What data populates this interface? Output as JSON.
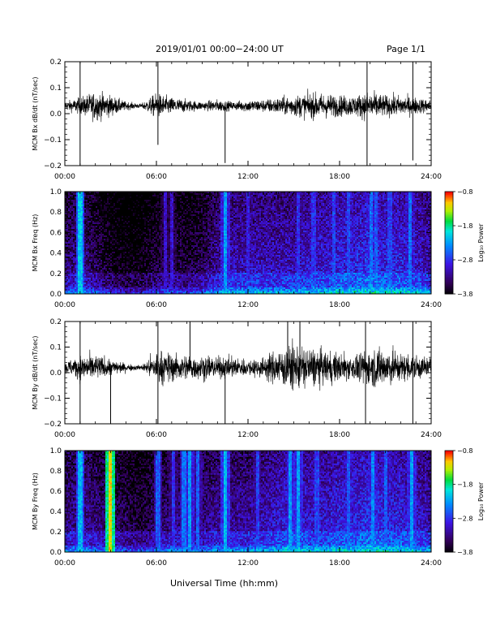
{
  "header": {
    "title": "2019/01/01  00:00−24:00 UT",
    "page": "Page 1/1"
  },
  "xlabel": "Universal Time (hh:mm)",
  "chart_data": [
    {
      "type": "line",
      "ylabel": "MCM Bx dB/dt (nT/sec)",
      "xticks": [
        "00:00",
        "06:00",
        "12:00",
        "18:00",
        "24:00"
      ],
      "yticks": [
        "0.2",
        "0.1",
        "0.0",
        "−0.1",
        "−0.2"
      ],
      "xlim_hours": [
        0,
        24
      ],
      "ylim": [
        -0.2,
        0.2
      ],
      "baseline": 0.03,
      "activity": [
        [
          0,
          0.02
        ],
        [
          1,
          0.04
        ],
        [
          2,
          0.07
        ],
        [
          3,
          0.05
        ],
        [
          4,
          0.02
        ],
        [
          5,
          0.01
        ],
        [
          6,
          0.06
        ],
        [
          7,
          0.04
        ],
        [
          8,
          0.03
        ],
        [
          9,
          0.02
        ],
        [
          10,
          0.03
        ],
        [
          11,
          0.02
        ],
        [
          12,
          0.03
        ],
        [
          13,
          0.03
        ],
        [
          14,
          0.04
        ],
        [
          15,
          0.05
        ],
        [
          16,
          0.06
        ],
        [
          17,
          0.06
        ],
        [
          18,
          0.05
        ],
        [
          19,
          0.05
        ],
        [
          20,
          0.07
        ],
        [
          21,
          0.05
        ],
        [
          22,
          0.05
        ],
        [
          23,
          0.04
        ],
        [
          24,
          0.03
        ]
      ],
      "spikes": [
        [
          1.0,
          0.2
        ],
        [
          1.0,
          -0.2
        ],
        [
          6.1,
          0.2
        ],
        [
          6.1,
          -0.12
        ],
        [
          10.5,
          -0.19
        ],
        [
          19.8,
          0.2
        ],
        [
          19.8,
          -0.2
        ],
        [
          22.8,
          0.2
        ],
        [
          22.8,
          -0.18
        ]
      ]
    },
    {
      "type": "heatmap",
      "ylabel": "MCM Bx Freq (Hz)",
      "xticks": [
        "00:00",
        "06:00",
        "12:00",
        "18:00",
        "24:00"
      ],
      "yticks": [
        "1.0",
        "0.8",
        "0.6",
        "0.4",
        "0.2",
        "0.0"
      ],
      "ylim": [
        0,
        1
      ],
      "colorbar": {
        "label": "Log₁₀ Power",
        "ticks": [
          "−0.8",
          "−1.8",
          "−2.8",
          "−3.8"
        ],
        "range": [
          -3.8,
          -0.8
        ]
      },
      "background_level": [
        [
          0,
          -3.3
        ],
        [
          1,
          -3.1
        ],
        [
          2,
          -3.4
        ],
        [
          3,
          -3.6
        ],
        [
          4,
          -3.7
        ],
        [
          5,
          -3.7
        ],
        [
          6,
          -3.5
        ],
        [
          7,
          -3.4
        ],
        [
          8,
          -3.5
        ],
        [
          9,
          -3.4
        ],
        [
          10,
          -3.1
        ],
        [
          11,
          -3.0
        ],
        [
          12,
          -3.0
        ],
        [
          13,
          -3.0
        ],
        [
          14,
          -3.0
        ],
        [
          15,
          -3.0
        ],
        [
          16,
          -2.9
        ],
        [
          17,
          -2.9
        ],
        [
          18,
          -2.8
        ],
        [
          19,
          -2.8
        ],
        [
          20,
          -2.7
        ],
        [
          21,
          -2.8
        ],
        [
          22,
          -2.8
        ],
        [
          23,
          -2.9
        ],
        [
          24,
          -3.0
        ]
      ],
      "vertical_lines_hours": [
        [
          1.0,
          -2.1
        ],
        [
          6.6,
          -3.0
        ],
        [
          7.0,
          -3.0
        ],
        [
          10.5,
          -2.3
        ],
        [
          12.0,
          -2.9
        ],
        [
          15.3,
          -2.8
        ],
        [
          16.3,
          -2.8
        ],
        [
          17.6,
          -2.7
        ],
        [
          18.6,
          -2.7
        ],
        [
          20.1,
          -2.5
        ],
        [
          20.4,
          -2.6
        ],
        [
          21.3,
          -2.7
        ],
        [
          22.6,
          -2.5
        ]
      ]
    },
    {
      "type": "line",
      "ylabel": "MCM By dB/dt (nT/sec)",
      "xticks": [
        "00:00",
        "06:00",
        "12:00",
        "18:00",
        "24:00"
      ],
      "yticks": [
        "0.2",
        "0.1",
        "0.0",
        "−0.1",
        "−0.2"
      ],
      "xlim_hours": [
        0,
        24
      ],
      "ylim": [
        -0.2,
        0.2
      ],
      "baseline": 0.02,
      "activity": [
        [
          0,
          0.03
        ],
        [
          1,
          0.06
        ],
        [
          2,
          0.06
        ],
        [
          3,
          0.04
        ],
        [
          4,
          0.02
        ],
        [
          5,
          0.01
        ],
        [
          6,
          0.08
        ],
        [
          7,
          0.07
        ],
        [
          8,
          0.06
        ],
        [
          9,
          0.06
        ],
        [
          10,
          0.05
        ],
        [
          11,
          0.05
        ],
        [
          12,
          0.04
        ],
        [
          13,
          0.05
        ],
        [
          14,
          0.09
        ],
        [
          15,
          0.11
        ],
        [
          16,
          0.1
        ],
        [
          17,
          0.08
        ],
        [
          18,
          0.07
        ],
        [
          19,
          0.06
        ],
        [
          20,
          0.09
        ],
        [
          21,
          0.1
        ],
        [
          22,
          0.07
        ],
        [
          23,
          0.06
        ],
        [
          24,
          0.05
        ]
      ],
      "spikes": [
        [
          1.0,
          0.2
        ],
        [
          1.0,
          -0.2
        ],
        [
          3.0,
          -0.2
        ],
        [
          6.1,
          0.2
        ],
        [
          6.1,
          -0.2
        ],
        [
          8.2,
          0.2
        ],
        [
          10.5,
          -0.2
        ],
        [
          14.6,
          0.2
        ],
        [
          15.4,
          0.2
        ],
        [
          19.7,
          0.2
        ],
        [
          19.7,
          -0.2
        ],
        [
          22.8,
          0.2
        ],
        [
          22.8,
          -0.2
        ]
      ]
    },
    {
      "type": "heatmap",
      "ylabel": "MCM By Freq (Hz)",
      "xticks": [
        "00:00",
        "06:00",
        "12:00",
        "18:00",
        "24:00"
      ],
      "yticks": [
        "1.0",
        "0.8",
        "0.6",
        "0.4",
        "0.2",
        "0.0"
      ],
      "ylim": [
        0,
        1
      ],
      "colorbar": {
        "label": "Log₁₀ Power",
        "ticks": [
          "−0.8",
          "−1.8",
          "−2.8",
          "−3.8"
        ],
        "range": [
          -3.8,
          -0.8
        ]
      },
      "background_level": [
        [
          0,
          -3.2
        ],
        [
          1,
          -3.1
        ],
        [
          2,
          -3.2
        ],
        [
          3,
          -3.3
        ],
        [
          4,
          -3.4
        ],
        [
          5,
          -3.5
        ],
        [
          6,
          -3.3
        ],
        [
          7,
          -3.2
        ],
        [
          8,
          -3.2
        ],
        [
          9,
          -3.2
        ],
        [
          10,
          -3.1
        ],
        [
          11,
          -3.1
        ],
        [
          12,
          -3.1
        ],
        [
          13,
          -3.0
        ],
        [
          14,
          -2.9
        ],
        [
          15,
          -2.8
        ],
        [
          16,
          -2.9
        ],
        [
          17,
          -2.9
        ],
        [
          18,
          -2.8
        ],
        [
          19,
          -2.8
        ],
        [
          20,
          -2.7
        ],
        [
          21,
          -2.8
        ],
        [
          22,
          -2.8
        ],
        [
          23,
          -2.9
        ],
        [
          24,
          -3.0
        ]
      ],
      "vertical_lines_hours": [
        [
          1.0,
          -2.2
        ],
        [
          3.0,
          -1.2
        ],
        [
          6.1,
          -2.6
        ],
        [
          7.1,
          -2.8
        ],
        [
          7.8,
          -2.5
        ],
        [
          8.2,
          -2.3
        ],
        [
          8.7,
          -2.6
        ],
        [
          10.5,
          -2.2
        ],
        [
          12.6,
          -2.7
        ],
        [
          14.8,
          -2.3
        ],
        [
          15.3,
          -2.3
        ],
        [
          16.5,
          -2.7
        ],
        [
          18.6,
          -2.6
        ],
        [
          20.2,
          -2.4
        ],
        [
          21.0,
          -2.6
        ],
        [
          22.7,
          -2.3
        ]
      ]
    }
  ]
}
